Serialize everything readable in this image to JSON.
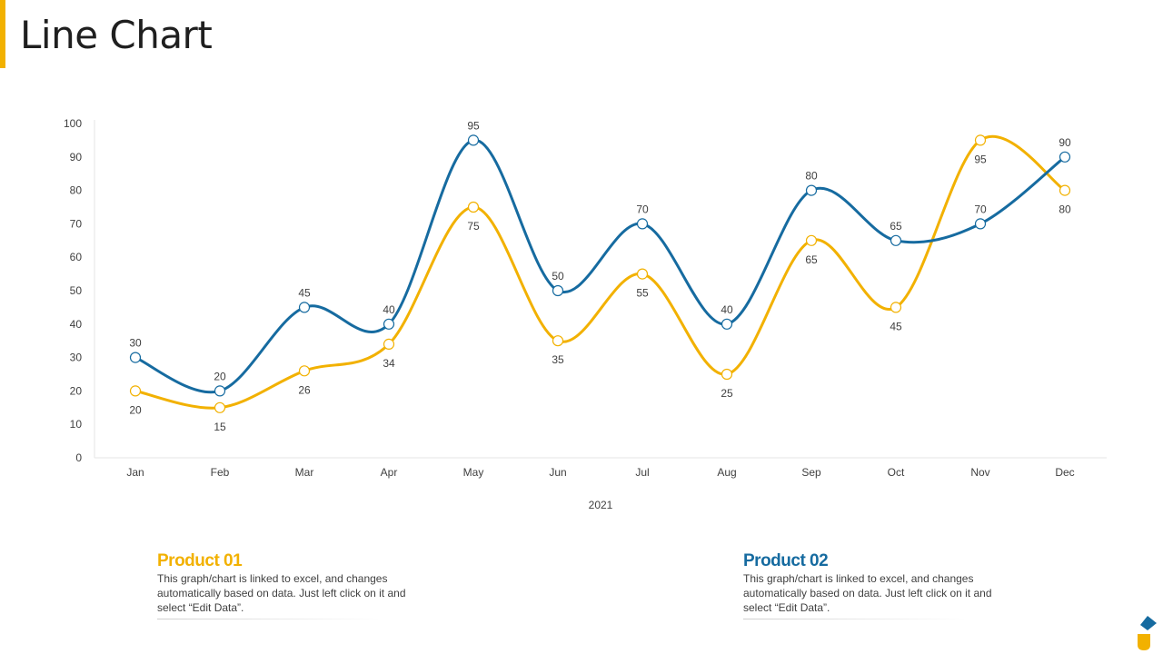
{
  "title": "Line Chart",
  "colors": {
    "accent": "#F2B100",
    "product1": "#F2B100",
    "product2": "#166BA0",
    "grid": "#e6e6e6"
  },
  "chart_data": {
    "type": "line",
    "categories": [
      "Jan",
      "Feb",
      "Mar",
      "Apr",
      "May",
      "Jun",
      "Jul",
      "Aug",
      "Sep",
      "Oct",
      "Nov",
      "Dec"
    ],
    "series": [
      {
        "name": "Product 01",
        "color": "#F2B100",
        "values": [
          20,
          15,
          26,
          34,
          75,
          35,
          55,
          25,
          65,
          45,
          95,
          80
        ],
        "label_position": "below"
      },
      {
        "name": "Product 02",
        "color": "#166BA0",
        "values": [
          30,
          20,
          45,
          40,
          95,
          50,
          70,
          40,
          80,
          65,
          70,
          90
        ],
        "label_position": "above"
      }
    ],
    "title": "",
    "xlabel": "2021",
    "ylabel": "",
    "ylim": [
      0,
      100
    ],
    "yticks": [
      "0",
      "10",
      "20",
      "30",
      "40",
      "50",
      "60",
      "70",
      "80",
      "90",
      "100"
    ],
    "smooth": true,
    "legend": "bottom"
  },
  "legend": [
    {
      "title": "Product 01",
      "description": "This graph/chart is linked to excel, and changes automatically based on data. Just left click on it and select “Edit Data”."
    },
    {
      "title": "Product 02",
      "description": "This graph/chart is linked to excel, and changes automatically based on data. Just left click on it and select “Edit Data”."
    }
  ]
}
